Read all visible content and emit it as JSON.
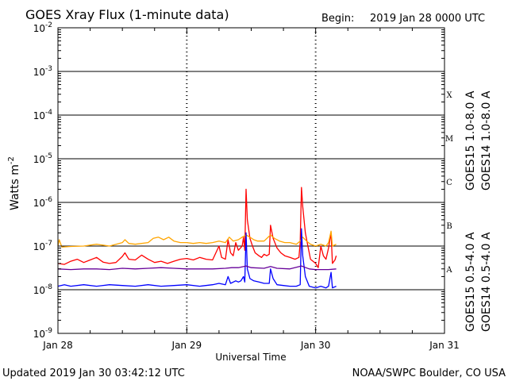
{
  "chart_data": {
    "type": "line",
    "title": "GOES Xray Flux (1-minute data)",
    "begin_label": "Begin:",
    "begin_value": "2019 Jan 28 0000 UTC",
    "xlabel": "Universal Time",
    "ylabel_text": "Watts m",
    "ylabel_exp": "-2",
    "x_unit": "days since 2019 Jan 28 0000 UTC",
    "xlim": [
      0,
      3
    ],
    "x_ticks": [
      {
        "value": 0,
        "label": "Jan 28"
      },
      {
        "value": 1,
        "label": "Jan 29"
      },
      {
        "value": 2,
        "label": "Jan 30"
      },
      {
        "value": 3,
        "label": "Jan 31"
      }
    ],
    "y_scale": "log",
    "ylim": [
      1e-09,
      0.01
    ],
    "y_ticks": [
      {
        "value": 1e-09,
        "base": "10",
        "exp": "-9"
      },
      {
        "value": 1e-08,
        "base": "10",
        "exp": "-8"
      },
      {
        "value": 1e-07,
        "base": "10",
        "exp": "-7"
      },
      {
        "value": 1e-06,
        "base": "10",
        "exp": "-6"
      },
      {
        "value": 1e-05,
        "base": "10",
        "exp": "-5"
      },
      {
        "value": 0.0001,
        "base": "10",
        "exp": "-4"
      },
      {
        "value": 0.001,
        "base": "10",
        "exp": "-3"
      },
      {
        "value": 0.01,
        "base": "10",
        "exp": "-2"
      }
    ],
    "flare_classes": [
      {
        "label": "A",
        "value": 3e-08
      },
      {
        "label": "B",
        "value": 3e-07
      },
      {
        "label": "C",
        "value": 3e-06
      },
      {
        "label": "M",
        "value": 3e-05
      },
      {
        "label": "X",
        "value": 0.0003
      }
    ],
    "grid_lines": [
      1e-08,
      1e-07,
      1e-06,
      1e-05,
      0.0001,
      0.001
    ],
    "legend_placement": "right, vertical",
    "series": [
      {
        "name": "GOES15 1.0-8.0 A",
        "color": "#ff0000",
        "points": [
          [
            0.0,
            4e-08
          ],
          [
            0.05,
            3.8e-08
          ],
          [
            0.1,
            4.5e-08
          ],
          [
            0.15,
            5e-08
          ],
          [
            0.2,
            4.2e-08
          ],
          [
            0.25,
            4.8e-08
          ],
          [
            0.3,
            5.5e-08
          ],
          [
            0.35,
            4.3e-08
          ],
          [
            0.4,
            4e-08
          ],
          [
            0.45,
            4.2e-08
          ],
          [
            0.5,
            5.8e-08
          ],
          [
            0.52,
            7e-08
          ],
          [
            0.55,
            5e-08
          ],
          [
            0.6,
            4.8e-08
          ],
          [
            0.65,
            6.2e-08
          ],
          [
            0.7,
            5e-08
          ],
          [
            0.75,
            4.2e-08
          ],
          [
            0.8,
            4.5e-08
          ],
          [
            0.85,
            4e-08
          ],
          [
            0.9,
            4.5e-08
          ],
          [
            0.95,
            5e-08
          ],
          [
            1.0,
            5.2e-08
          ],
          [
            1.05,
            4.8e-08
          ],
          [
            1.1,
            5.5e-08
          ],
          [
            1.15,
            5e-08
          ],
          [
            1.2,
            4.8e-08
          ],
          [
            1.25,
            1e-07
          ],
          [
            1.27,
            5.5e-08
          ],
          [
            1.3,
            5e-08
          ],
          [
            1.32,
            1.4e-07
          ],
          [
            1.34,
            7e-08
          ],
          [
            1.36,
            6e-08
          ],
          [
            1.38,
            1.2e-07
          ],
          [
            1.4,
            8e-08
          ],
          [
            1.43,
            1e-07
          ],
          [
            1.44,
            1.6e-07
          ],
          [
            1.45,
            8e-08
          ],
          [
            1.46,
            2e-06
          ],
          [
            1.47,
            4e-07
          ],
          [
            1.49,
            1.5e-07
          ],
          [
            1.51,
            1e-07
          ],
          [
            1.53,
            7e-08
          ],
          [
            1.56,
            6e-08
          ],
          [
            1.58,
            5.5e-08
          ],
          [
            1.6,
            6.5e-08
          ],
          [
            1.62,
            6e-08
          ],
          [
            1.64,
            6.5e-08
          ],
          [
            1.65,
            3e-07
          ],
          [
            1.67,
            1.5e-07
          ],
          [
            1.7,
            9e-08
          ],
          [
            1.73,
            7e-08
          ],
          [
            1.76,
            6e-08
          ],
          [
            1.8,
            5.5e-08
          ],
          [
            1.84,
            5e-08
          ],
          [
            1.87,
            5.5e-08
          ],
          [
            1.88,
            1.2e-07
          ],
          [
            1.89,
            2.2e-06
          ],
          [
            1.9,
            8e-07
          ],
          [
            1.92,
            2e-07
          ],
          [
            1.94,
            1e-07
          ],
          [
            1.96,
            5e-08
          ],
          [
            2.0,
            4e-08
          ],
          [
            2.02,
            3.2e-08
          ],
          [
            2.04,
            1e-07
          ],
          [
            2.06,
            6e-08
          ],
          [
            2.08,
            5e-08
          ],
          [
            2.1,
            9e-08
          ],
          [
            2.12,
            2e-07
          ],
          [
            2.13,
            4e-08
          ],
          [
            2.15,
            4.8e-08
          ],
          [
            2.16,
            6e-08
          ]
        ]
      },
      {
        "name": "GOES14 1.0-8.0 A",
        "color": "#ffa500",
        "points": [
          [
            0.0,
            1e-07
          ],
          [
            0.01,
            1.4e-07
          ],
          [
            0.03,
            9.5e-08
          ],
          [
            0.1,
            9.8e-08
          ],
          [
            0.2,
            1e-07
          ],
          [
            0.3,
            1.1e-07
          ],
          [
            0.4,
            1e-07
          ],
          [
            0.5,
            1.2e-07
          ],
          [
            0.52,
            1.4e-07
          ],
          [
            0.55,
            1.15e-07
          ],
          [
            0.6,
            1.1e-07
          ],
          [
            0.7,
            1.2e-07
          ],
          [
            0.74,
            1.5e-07
          ],
          [
            0.78,
            1.6e-07
          ],
          [
            0.82,
            1.4e-07
          ],
          [
            0.86,
            1.6e-07
          ],
          [
            0.9,
            1.3e-07
          ],
          [
            0.95,
            1.2e-07
          ],
          [
            1.0,
            1.2e-07
          ],
          [
            1.05,
            1.15e-07
          ],
          [
            1.1,
            1.2e-07
          ],
          [
            1.15,
            1.15e-07
          ],
          [
            1.2,
            1.2e-07
          ],
          [
            1.25,
            1.3e-07
          ],
          [
            1.3,
            1.2e-07
          ],
          [
            1.33,
            1.6e-07
          ],
          [
            1.36,
            1.3e-07
          ],
          [
            1.4,
            1.4e-07
          ],
          [
            1.43,
            1.6e-07
          ],
          [
            1.46,
            1.8e-07
          ],
          [
            1.49,
            1.6e-07
          ],
          [
            1.52,
            1.4e-07
          ],
          [
            1.55,
            1.3e-07
          ],
          [
            1.6,
            1.3e-07
          ],
          [
            1.65,
            1.8e-07
          ],
          [
            1.68,
            1.5e-07
          ],
          [
            1.72,
            1.3e-07
          ],
          [
            1.76,
            1.2e-07
          ],
          [
            1.8,
            1.2e-07
          ],
          [
            1.85,
            1.1e-07
          ],
          [
            1.88,
            1.3e-07
          ],
          [
            1.9,
            1.6e-07
          ],
          [
            1.93,
            1.3e-07
          ],
          [
            1.96,
            1.1e-07
          ],
          [
            2.0,
            1e-07
          ],
          [
            2.04,
            1.1e-07
          ],
          [
            2.08,
            1e-07
          ],
          [
            2.1,
            1.2e-07
          ],
          [
            2.12,
            2.2e-07
          ],
          [
            2.13,
            1e-07
          ],
          [
            2.16,
            1.1e-07
          ]
        ]
      },
      {
        "name": "GOES15 0.5-4.0 A",
        "color": "#0000ff",
        "points": [
          [
            0.0,
            1.2e-08
          ],
          [
            0.05,
            1.3e-08
          ],
          [
            0.1,
            1.2e-08
          ],
          [
            0.2,
            1.3e-08
          ],
          [
            0.3,
            1.2e-08
          ],
          [
            0.4,
            1.3e-08
          ],
          [
            0.5,
            1.25e-08
          ],
          [
            0.6,
            1.2e-08
          ],
          [
            0.7,
            1.3e-08
          ],
          [
            0.8,
            1.2e-08
          ],
          [
            0.9,
            1.25e-08
          ],
          [
            1.0,
            1.3e-08
          ],
          [
            1.1,
            1.2e-08
          ],
          [
            1.2,
            1.3e-08
          ],
          [
            1.25,
            1.4e-08
          ],
          [
            1.3,
            1.3e-08
          ],
          [
            1.32,
            2e-08
          ],
          [
            1.34,
            1.4e-08
          ],
          [
            1.38,
            1.6e-08
          ],
          [
            1.4,
            1.5e-08
          ],
          [
            1.42,
            1.6e-08
          ],
          [
            1.44,
            2e-08
          ],
          [
            1.45,
            1.5e-08
          ],
          [
            1.46,
            2e-07
          ],
          [
            1.47,
            3e-08
          ],
          [
            1.49,
            1.8e-08
          ],
          [
            1.52,
            1.6e-08
          ],
          [
            1.56,
            1.5e-08
          ],
          [
            1.6,
            1.4e-08
          ],
          [
            1.64,
            1.4e-08
          ],
          [
            1.65,
            3e-08
          ],
          [
            1.67,
            1.8e-08
          ],
          [
            1.7,
            1.3e-08
          ],
          [
            1.75,
            1.25e-08
          ],
          [
            1.8,
            1.2e-08
          ],
          [
            1.85,
            1.2e-08
          ],
          [
            1.88,
            1.3e-08
          ],
          [
            1.89,
            2.5e-07
          ],
          [
            1.9,
            6e-08
          ],
          [
            1.92,
            2e-08
          ],
          [
            1.95,
            1.2e-08
          ],
          [
            2.0,
            1.1e-08
          ],
          [
            2.04,
            1.2e-08
          ],
          [
            2.08,
            1.1e-08
          ],
          [
            2.1,
            1.2e-08
          ],
          [
            2.12,
            2.5e-08
          ],
          [
            2.13,
            1.1e-08
          ],
          [
            2.16,
            1.2e-08
          ]
        ]
      },
      {
        "name": "GOES14 0.5-4.0 A",
        "color": "#660099",
        "points": [
          [
            0.0,
            3e-08
          ],
          [
            0.1,
            2.9e-08
          ],
          [
            0.2,
            3e-08
          ],
          [
            0.3,
            3e-08
          ],
          [
            0.4,
            2.9e-08
          ],
          [
            0.5,
            3.1e-08
          ],
          [
            0.6,
            3e-08
          ],
          [
            0.7,
            3.1e-08
          ],
          [
            0.8,
            3.2e-08
          ],
          [
            0.9,
            3.1e-08
          ],
          [
            1.0,
            3e-08
          ],
          [
            1.1,
            3e-08
          ],
          [
            1.2,
            3e-08
          ],
          [
            1.3,
            3.1e-08
          ],
          [
            1.35,
            3.2e-08
          ],
          [
            1.4,
            3.2e-08
          ],
          [
            1.46,
            3.5e-08
          ],
          [
            1.5,
            3.2e-08
          ],
          [
            1.6,
            3.1e-08
          ],
          [
            1.65,
            3.4e-08
          ],
          [
            1.7,
            3.1e-08
          ],
          [
            1.8,
            3e-08
          ],
          [
            1.89,
            3.5e-08
          ],
          [
            1.95,
            3e-08
          ],
          [
            2.0,
            2.9e-08
          ],
          [
            2.1,
            2.9e-08
          ],
          [
            2.16,
            3e-08
          ]
        ]
      }
    ]
  },
  "footer": {
    "updated": "Updated 2019 Jan 30 03:42:12 UTC",
    "source": "NOAA/SWPC Boulder, CO USA"
  }
}
